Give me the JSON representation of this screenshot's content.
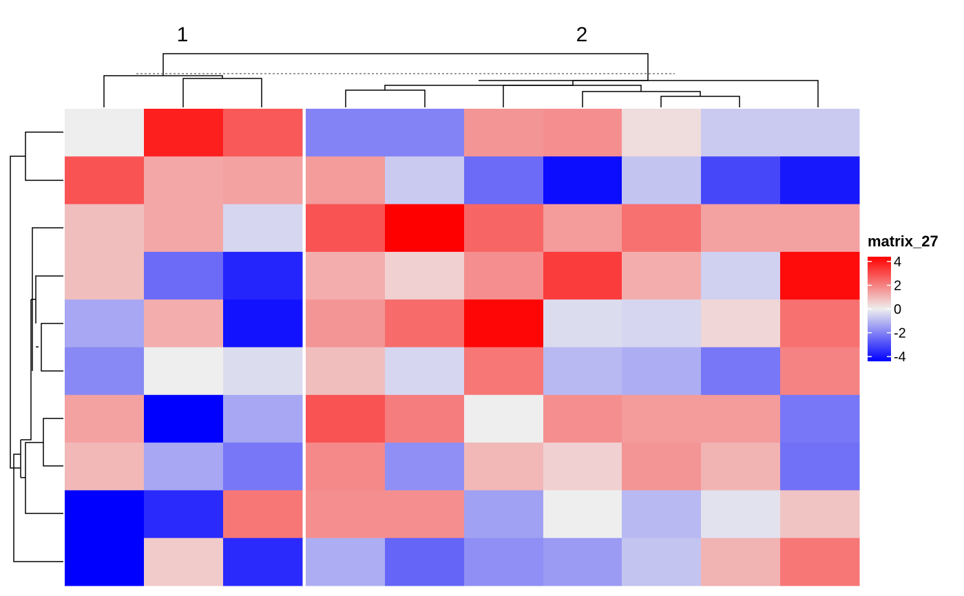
{
  "chart_data": {
    "type": "heatmap",
    "column_split_labels": [
      "1",
      "2"
    ],
    "legend": {
      "title": "matrix_27",
      "ticks": [
        "4",
        "2",
        "0",
        "-2",
        "-4"
      ],
      "tick_values": [
        4,
        2,
        0,
        -2,
        -4
      ],
      "colors": [
        "#0000ff",
        "#eeeeee",
        "#ff0000"
      ],
      "color_breaks": [
        -4,
        0,
        4
      ],
      "placement": "right"
    },
    "values": [
      [
        0.0,
        3.5,
        2.5,
        -1.8,
        -1.8,
        1.5,
        1.6,
        0.3,
        -0.6,
        -0.6
      ],
      [
        2.6,
        1.2,
        1.3,
        1.4,
        -0.6,
        -2.2,
        -3.8,
        -0.7,
        -2.8,
        -3.6
      ],
      [
        0.8,
        1.2,
        -0.4,
        2.6,
        4.0,
        2.3,
        1.4,
        2.1,
        1.3,
        1.3
      ],
      [
        0.8,
        -2.2,
        -3.4,
        1.1,
        0.5,
        1.6,
        3.0,
        1.1,
        -0.5,
        3.8
      ],
      [
        -1.2,
        1.1,
        -3.7,
        1.5,
        2.2,
        3.9,
        -0.3,
        -0.4,
        0.4,
        2.1
      ],
      [
        -1.7,
        0.0,
        -0.3,
        0.8,
        -0.4,
        2.0,
        -0.9,
        -1.1,
        -2.0,
        1.8
      ],
      [
        1.3,
        -4.0,
        -1.2,
        2.6,
        1.9,
        0.0,
        1.6,
        1.4,
        1.4,
        -2.0
      ],
      [
        0.9,
        -1.2,
        -2.0,
        1.7,
        -1.6,
        0.9,
        0.5,
        1.5,
        1.0,
        -2.1
      ],
      [
        -4.5,
        -3.3,
        2.0,
        1.6,
        1.6,
        -1.3,
        0.0,
        -0.9,
        -0.2,
        0.7
      ],
      [
        -5.0,
        0.6,
        -3.3,
        -1.1,
        -2.3,
        -1.6,
        -1.4,
        -0.7,
        1.0,
        2.0
      ]
    ]
  }
}
